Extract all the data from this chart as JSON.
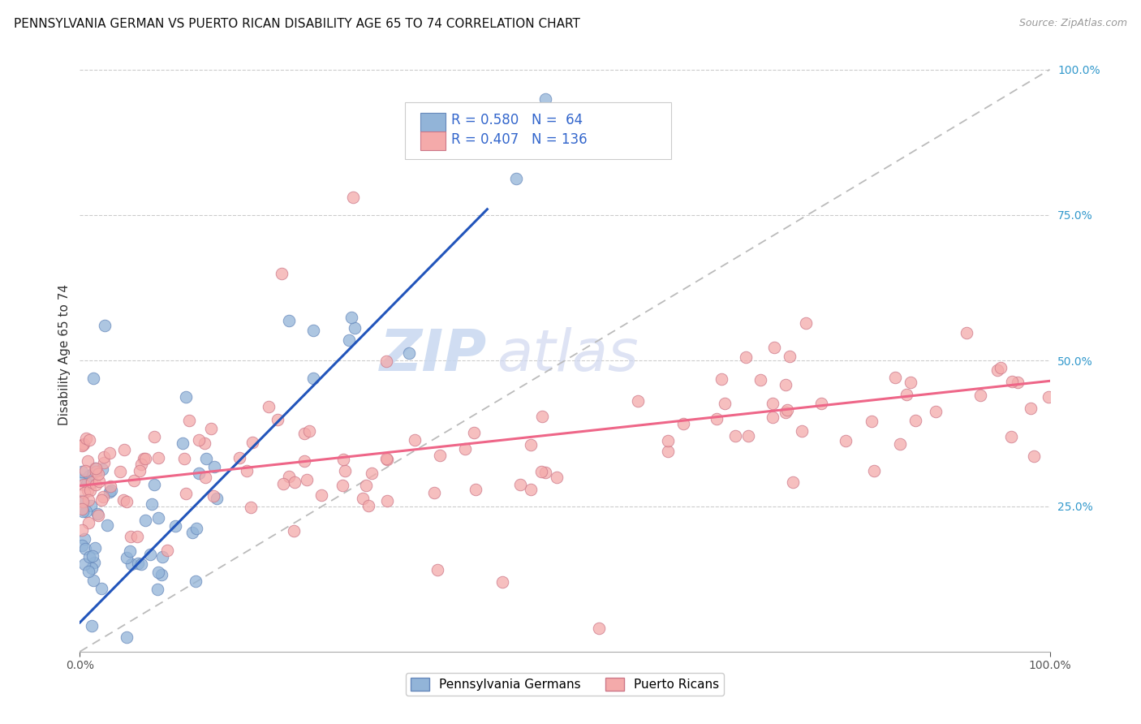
{
  "title": "PENNSYLVANIA GERMAN VS PUERTO RICAN DISABILITY AGE 65 TO 74 CORRELATION CHART",
  "source": "Source: ZipAtlas.com",
  "ylabel": "Disability Age 65 to 74",
  "xlim": [
    0,
    1
  ],
  "ylim": [
    0,
    1.02
  ],
  "blue_color": "#92B4D8",
  "pink_color": "#F4AAAA",
  "blue_line_color": "#2255BB",
  "pink_line_color": "#EE6688",
  "blue_R": 0.58,
  "blue_N": 64,
  "pink_R": 0.407,
  "pink_N": 136,
  "legend_text_color": "#3366CC",
  "watermark_zip": "ZIP",
  "watermark_atlas": "atlas",
  "title_fontsize": 11,
  "axis_label_fontsize": 11,
  "tick_fontsize": 10,
  "blue_line_x0": 0.0,
  "blue_line_y0": 0.05,
  "blue_line_x1": 0.42,
  "blue_line_y1": 0.76,
  "pink_line_x0": 0.0,
  "pink_line_x1": 1.0,
  "pink_line_y0": 0.285,
  "pink_line_y1": 0.465
}
